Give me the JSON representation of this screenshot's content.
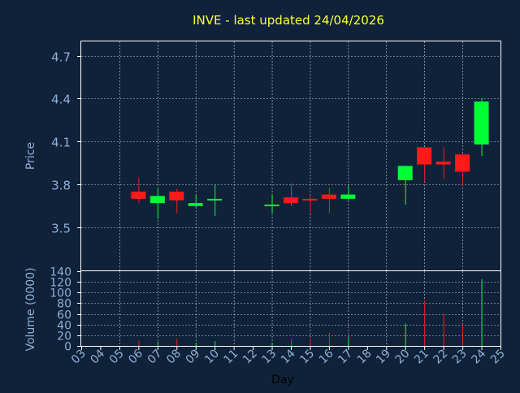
{
  "colors": {
    "background": "#10223a",
    "axis_text": "#8fb0d6",
    "title": "#ffff33",
    "label": "#000000",
    "up": "#00ff33",
    "down": "#ff1a1a",
    "grid": "#ffffff",
    "axis": "#ffffff"
  },
  "chart_data": {
    "type": "candlestick",
    "title": "INVE - last updated 24/04/2026",
    "xlabel": "Day",
    "x_ticks": [
      "03",
      "04",
      "05",
      "06",
      "07",
      "08",
      "09",
      "10",
      "11",
      "12",
      "13",
      "14",
      "15",
      "16",
      "17",
      "18",
      "19",
      "20",
      "21",
      "22",
      "23",
      "24",
      "25"
    ],
    "price": {
      "ylabel": "Price",
      "yticks": [
        "3.5",
        "3.8",
        "4.1",
        "4.4",
        "4.7"
      ],
      "ylim": [
        3.2,
        4.8
      ],
      "candles": [
        {
          "day": "06",
          "open": 3.75,
          "high": 3.85,
          "low": 3.67,
          "close": 3.7
        },
        {
          "day": "07",
          "open": 3.67,
          "high": 3.77,
          "low": 3.56,
          "close": 3.72
        },
        {
          "day": "08",
          "open": 3.75,
          "high": 3.77,
          "low": 3.6,
          "close": 3.69
        },
        {
          "day": "09",
          "open": 3.65,
          "high": 3.73,
          "low": 3.64,
          "close": 3.67
        },
        {
          "day": "10",
          "open": 3.69,
          "high": 3.8,
          "low": 3.58,
          "close": 3.7
        },
        {
          "day": "13",
          "open": 3.65,
          "high": 3.73,
          "low": 3.6,
          "close": 3.66
        },
        {
          "day": "14",
          "open": 3.71,
          "high": 3.81,
          "low": 3.65,
          "close": 3.67
        },
        {
          "day": "15",
          "open": 3.7,
          "high": 3.72,
          "low": 3.6,
          "close": 3.69
        },
        {
          "day": "16",
          "open": 3.73,
          "high": 3.78,
          "low": 3.6,
          "close": 3.7
        },
        {
          "day": "17",
          "open": 3.7,
          "high": 3.79,
          "low": 3.69,
          "close": 3.73
        },
        {
          "day": "20",
          "open": 3.83,
          "high": 3.93,
          "low": 3.66,
          "close": 3.93
        },
        {
          "day": "21",
          "open": 4.06,
          "high": 4.06,
          "low": 3.82,
          "close": 3.94
        },
        {
          "day": "22",
          "open": 3.96,
          "high": 4.06,
          "low": 3.84,
          "close": 3.94
        },
        {
          "day": "23",
          "open": 4.01,
          "high": 4.01,
          "low": 3.79,
          "close": 3.89
        },
        {
          "day": "24",
          "open": 4.08,
          "high": 4.4,
          "low": 4.0,
          "close": 4.38
        }
      ]
    },
    "volume": {
      "ylabel": "Volume (0000)",
      "yticks": [
        "0",
        "20",
        "40",
        "60",
        "80",
        "100",
        "120",
        "140"
      ],
      "ylim": [
        0,
        140
      ],
      "bars": [
        {
          "day": "06",
          "value": 10,
          "dir": "down"
        },
        {
          "day": "07",
          "value": 8,
          "dir": "up"
        },
        {
          "day": "08",
          "value": 13,
          "dir": "down"
        },
        {
          "day": "09",
          "value": 6,
          "dir": "up"
        },
        {
          "day": "10",
          "value": 9,
          "dir": "up"
        },
        {
          "day": "13",
          "value": 6,
          "dir": "up"
        },
        {
          "day": "14",
          "value": 14,
          "dir": "down"
        },
        {
          "day": "15",
          "value": 11,
          "dir": "down"
        },
        {
          "day": "16",
          "value": 24,
          "dir": "down"
        },
        {
          "day": "17",
          "value": 15,
          "dir": "up"
        },
        {
          "day": "20",
          "value": 42,
          "dir": "up"
        },
        {
          "day": "21",
          "value": 85,
          "dir": "down"
        },
        {
          "day": "22",
          "value": 60,
          "dir": "down"
        },
        {
          "day": "23",
          "value": 41,
          "dir": "down"
        },
        {
          "day": "24",
          "value": 125,
          "dir": "up"
        }
      ]
    }
  }
}
